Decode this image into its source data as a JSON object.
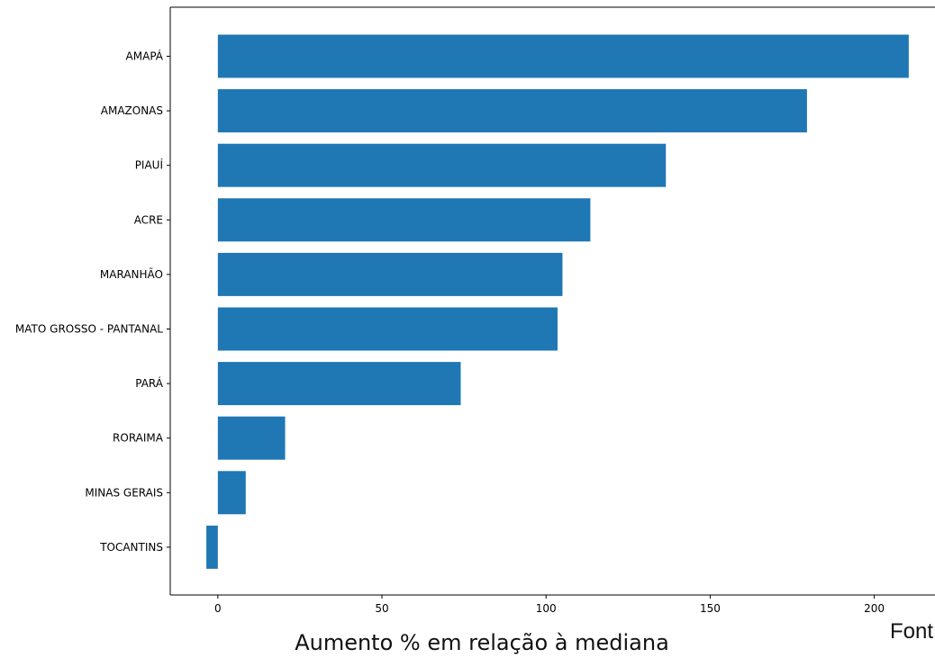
{
  "chart_data": {
    "type": "bar",
    "orientation": "horizontal",
    "categories": [
      "AMAPÁ",
      "AMAZONAS",
      "PIAUÍ",
      "ACRE",
      "MARANHÃO",
      "MATO GROSSO - PANTANAL",
      "PARÁ",
      "RORAIMA",
      "MINAS GERAIS",
      "TOCANTINS"
    ],
    "values": [
      210.5,
      179.5,
      136.5,
      113.5,
      105,
      103.5,
      74,
      20.5,
      8.5,
      -3.5
    ],
    "xticks": [
      0,
      50,
      100,
      150,
      200
    ],
    "xlim": [
      -14.5,
      218.5
    ],
    "xlabel": "Aumento % em relação à mediana",
    "color": "#1f77b4",
    "grid": false
  },
  "footer": {
    "source_text": "Font"
  }
}
